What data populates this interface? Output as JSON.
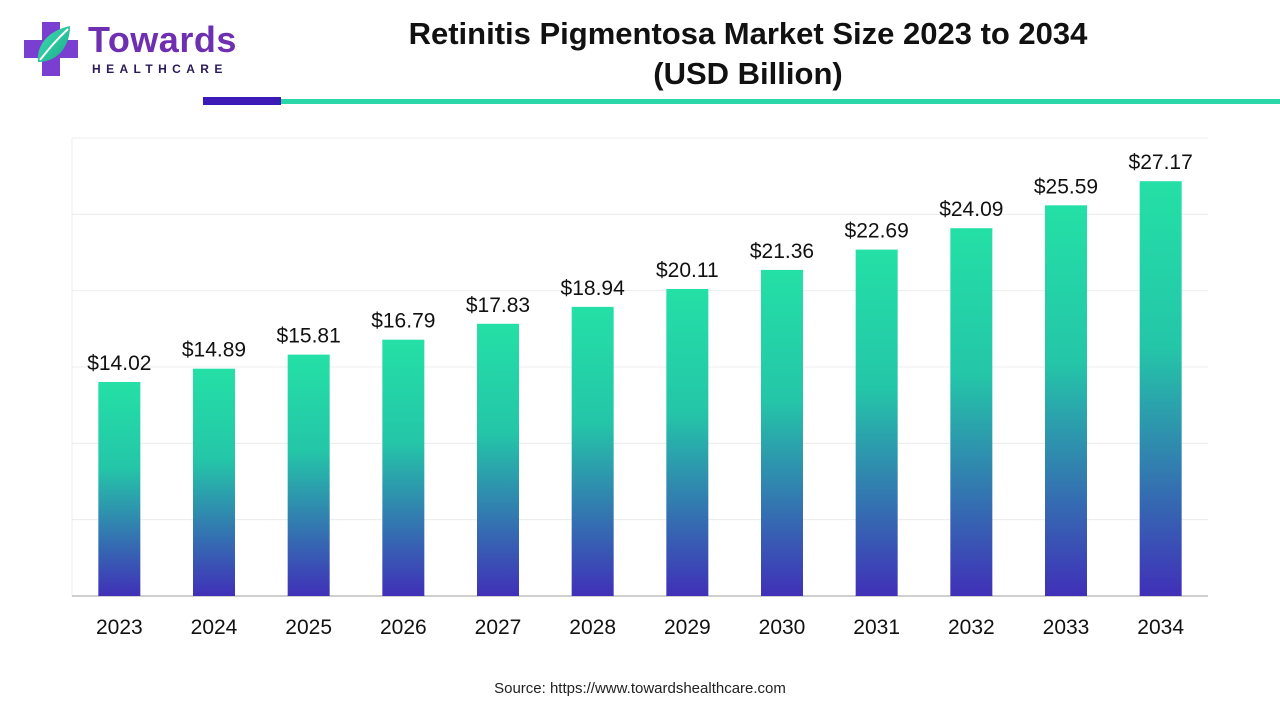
{
  "header": {
    "logo_word": "Towards",
    "logo_sub": "HEALTHCARE",
    "title_line1": "Retinitis Pigmentosa Market Size 2023 to 2034",
    "title_line2": "(USD Billion)"
  },
  "chart_data": {
    "type": "bar",
    "title": "Retinitis Pigmentosa Market Size 2023 to 2034 (USD Billion)",
    "xlabel": "",
    "ylabel": "",
    "categories": [
      "2023",
      "2024",
      "2025",
      "2026",
      "2027",
      "2028",
      "2029",
      "2030",
      "2031",
      "2032",
      "2033",
      "2034"
    ],
    "values": [
      14.02,
      14.89,
      15.81,
      16.79,
      17.83,
      18.94,
      20.11,
      21.36,
      22.69,
      24.09,
      25.59,
      27.17
    ],
    "value_labels": [
      "$14.02",
      "$14.89",
      "$15.81",
      "$16.79",
      "$17.83",
      "$18.94",
      "$20.11",
      "$21.36",
      "$22.69",
      "$24.09",
      "$25.59",
      "$27.17"
    ],
    "ylim": [
      0,
      30
    ],
    "grid": true,
    "legend": "none",
    "colors": {
      "bar_top": "#24e0a6",
      "bar_bottom": "#4030b8",
      "grid": "#ececec",
      "axis": "#bfbfbf"
    }
  },
  "footer": {
    "source": "Source: https://www.towardshealthcare.com"
  }
}
